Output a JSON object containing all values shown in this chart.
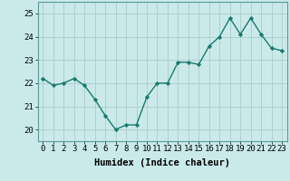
{
  "x": [
    0,
    1,
    2,
    3,
    4,
    5,
    6,
    7,
    8,
    9,
    10,
    11,
    12,
    13,
    14,
    15,
    16,
    17,
    18,
    19,
    20,
    21,
    22,
    23
  ],
  "y": [
    22.2,
    21.9,
    22.0,
    22.2,
    21.9,
    21.3,
    20.6,
    20.0,
    20.2,
    20.2,
    21.4,
    22.0,
    22.0,
    22.9,
    22.9,
    22.8,
    23.6,
    24.0,
    24.8,
    24.1,
    24.8,
    24.1,
    23.5,
    23.4
  ],
  "line_color": "#1a7a6e",
  "marker": "D",
  "marker_size": 2.2,
  "bg_color": "#caeaea",
  "grid_color": "#b0d0d0",
  "xlabel": "Humidex (Indice chaleur)",
  "xlim": [
    -0.5,
    23.5
  ],
  "ylim": [
    19.5,
    25.5
  ],
  "yticks": [
    20,
    21,
    22,
    23,
    24,
    25
  ],
  "xticks": [
    0,
    1,
    2,
    3,
    4,
    5,
    6,
    7,
    8,
    9,
    10,
    11,
    12,
    13,
    14,
    15,
    16,
    17,
    18,
    19,
    20,
    21,
    22,
    23
  ],
  "xlabel_fontsize": 7.5,
  "tick_fontsize": 6.5,
  "line_width": 1.0
}
